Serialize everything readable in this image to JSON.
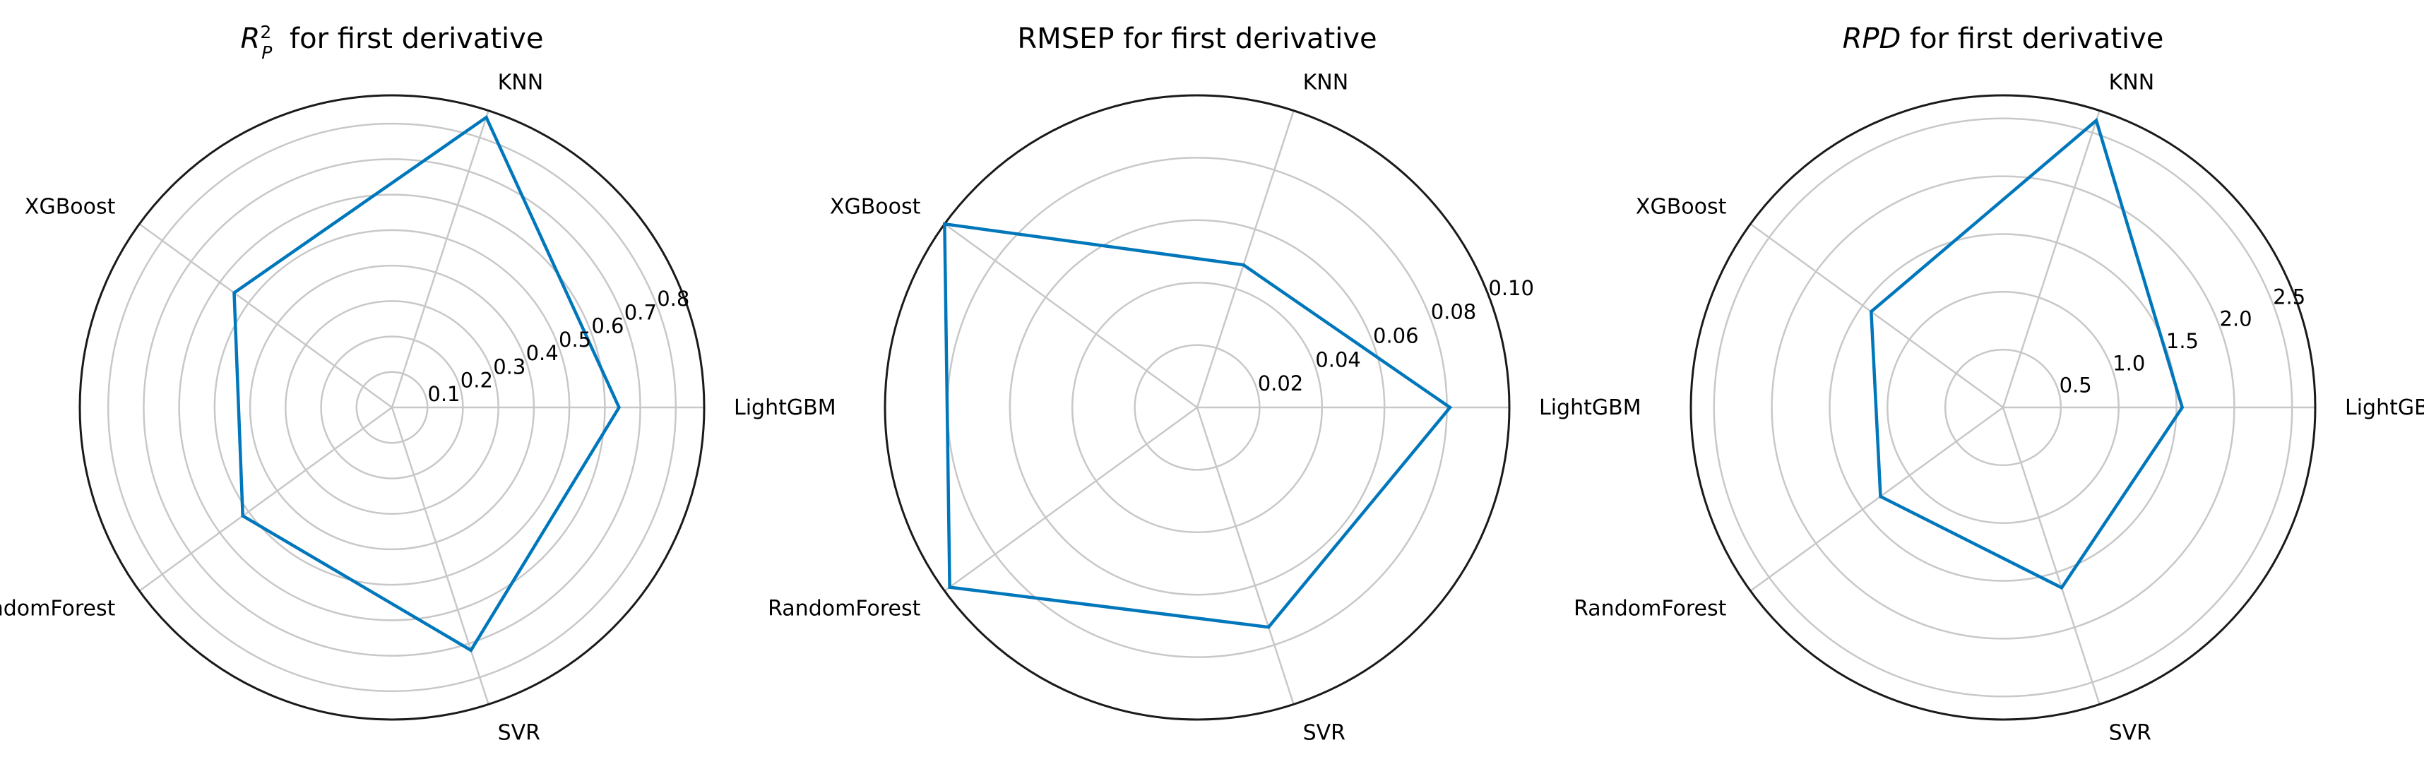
{
  "colors": {
    "series": "#0077bb",
    "grid": "#c8c8c8",
    "outer": "#1a1a1a"
  },
  "chart_data": [
    {
      "type": "radar",
      "title": "for first derivative",
      "title_symbol": "R",
      "title_sup": "2",
      "title_sub": "P",
      "categories": [
        "LightGBM",
        "KNN",
        "XGBoost",
        "RandomForest",
        "SVR"
      ],
      "values": [
        0.64,
        0.86,
        0.55,
        0.52,
        0.72
      ],
      "rlim": [
        0,
        0.88
      ],
      "rticks": [
        0.1,
        0.2,
        0.3,
        0.4,
        0.5,
        0.6,
        0.7,
        0.8
      ],
      "rtick_labels": [
        "0.1",
        "0.2",
        "0.3",
        "0.4",
        "0.5",
        "0.6",
        "0.7",
        "0.8"
      ],
      "grid": true
    },
    {
      "type": "radar",
      "title": "RMSEP for first derivative",
      "categories": [
        "LightGBM",
        "KNN",
        "XGBoost",
        "RandomForest",
        "SVR"
      ],
      "values": [
        0.081,
        0.048,
        0.1,
        0.098,
        0.074
      ],
      "rlim": [
        0,
        0.1
      ],
      "rticks": [
        0.02,
        0.04,
        0.06,
        0.08,
        0.1
      ],
      "rtick_labels": [
        "0.02",
        "0.04",
        "0.06",
        "0.08",
        "0.10"
      ],
      "grid": true
    },
    {
      "type": "radar",
      "title": "for first derivative",
      "title_symbol": "RPD",
      "categories": [
        "LightGBM",
        "KNN",
        "XGBoost",
        "RandomForest",
        "SVR"
      ],
      "values": [
        1.55,
        2.61,
        1.41,
        1.31,
        1.64
      ],
      "rlim": [
        0,
        2.7
      ],
      "rticks": [
        0.5,
        1.0,
        1.5,
        2.0,
        2.5
      ],
      "rtick_labels": [
        "0.5",
        "1.0",
        "1.5",
        "2.0",
        "2.5"
      ],
      "grid": true
    }
  ]
}
